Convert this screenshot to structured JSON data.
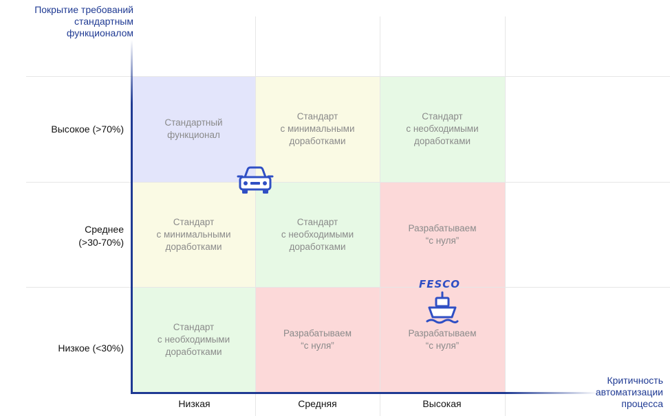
{
  "axes": {
    "y_title": "Покрытие требований\nстандартным\nфункционалом",
    "x_title": "Критичность\nавтоматизации\nпроцесса"
  },
  "rows": [
    {
      "label": "Высокое (>70%)"
    },
    {
      "label": "Среднее\n(>30-70%)"
    },
    {
      "label": "Низкое (<30%)"
    }
  ],
  "columns": [
    {
      "label": "Низкая"
    },
    {
      "label": "Средняя"
    },
    {
      "label": "Высокая"
    }
  ],
  "cells": [
    {
      "text": "Стандартный\nфункционал",
      "color": "#e3e5fb"
    },
    {
      "text": "Стандарт\nс минимальными\nдоработками",
      "color": "#fafae4"
    },
    {
      "text": "Стандарт\nс необходимыми\nдоработками",
      "color": "#e7f9e5"
    },
    {
      "text": "Стандарт\nс минимальными\nдоработками",
      "color": "#fafae4"
    },
    {
      "text": "Стандарт\nс необходимыми\nдоработками",
      "color": "#e7f9e5"
    },
    {
      "text": "Разрабатываем\n“с нуля”",
      "color": "#fcd9d9"
    },
    {
      "text": "Стандарт\nс необходимыми\nдоработками",
      "color": "#e7f9e5"
    },
    {
      "text": "Разрабатываем\n“с нуля”",
      "color": "#fcd9d9"
    },
    {
      "text": "Разрабатываем\n“с нуля”",
      "color": "#fcd9d9"
    }
  ],
  "logos": {
    "fesco_text": "FESCO",
    "car_icon": "car-icon",
    "ship_icon": "ship-icon"
  },
  "colors": {
    "axis": "#1f3a93",
    "icon": "#2f4fc4"
  }
}
